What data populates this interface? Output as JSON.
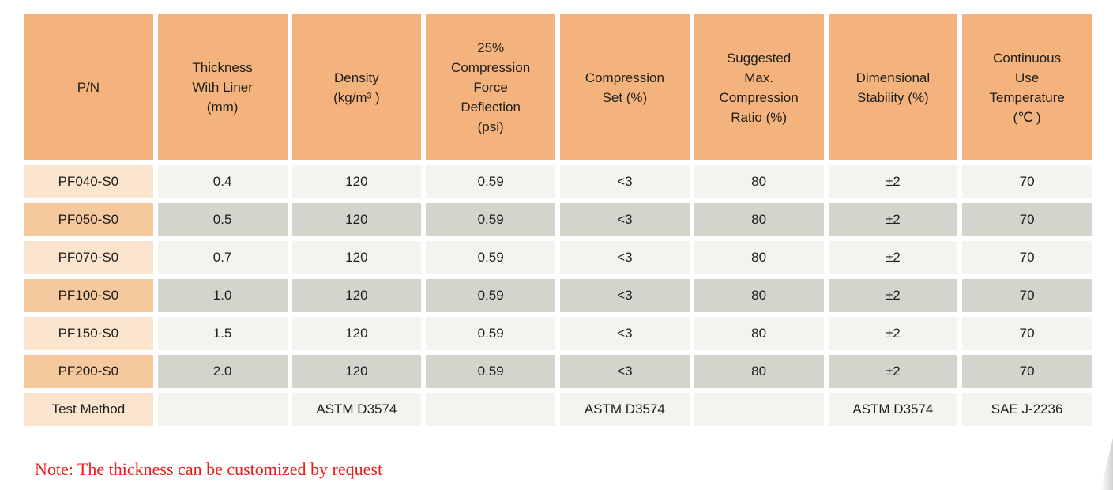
{
  "table": {
    "headers": [
      {
        "label": "P/N"
      },
      {
        "label": "Thickness\nWith Liner\n(mm)"
      },
      {
        "label": "Density\n(kg/m³ )"
      },
      {
        "label": "25%\nCompression\nForce\nDeflection\n(psi)"
      },
      {
        "label": "Compression\nSet (%)"
      },
      {
        "label": "Suggested\nMax.\nCompression\nRatio (%)"
      },
      {
        "label": "Dimensional\nStability (%)"
      },
      {
        "label": "Continuous\nUse\nTemperature\n(℃ )"
      }
    ],
    "rows": [
      {
        "pn": "PF040-S0",
        "values": [
          "0.4",
          "120",
          "0.59",
          "<3",
          "80",
          "±2",
          "70"
        ]
      },
      {
        "pn": "PF050-S0",
        "values": [
          "0.5",
          "120",
          "0.59",
          "<3",
          "80",
          "±2",
          "70"
        ]
      },
      {
        "pn": "PF070-S0",
        "values": [
          "0.7",
          "120",
          "0.59",
          "<3",
          "80",
          "±2",
          "70"
        ]
      },
      {
        "pn": "PF100-S0",
        "values": [
          "1.0",
          "120",
          "0.59",
          "<3",
          "80",
          "±2",
          "70"
        ]
      },
      {
        "pn": "PF150-S0",
        "values": [
          "1.5",
          "120",
          "0.59",
          "<3",
          "80",
          "±2",
          "70"
        ]
      },
      {
        "pn": "PF200-S0",
        "values": [
          "2.0",
          "120",
          "0.59",
          "<3",
          "80",
          "±2",
          "70"
        ]
      }
    ],
    "test_method_row": {
      "label": "Test Method",
      "values": [
        "",
        "ASTM D3574",
        "",
        "ASTM D3574",
        "",
        "ASTM D3574",
        "SAE J-2236"
      ]
    }
  },
  "note": "Note: The thickness can be customized by request",
  "colors": {
    "header_bg": "#F4B37C",
    "pn_odd_bg": "#FBE5CE",
    "pn_even_bg": "#F6C89E",
    "data_odd_bg": "#F3F4EF",
    "data_even_bg": "#D3D4CC",
    "note_text": "#EE1B1B"
  }
}
